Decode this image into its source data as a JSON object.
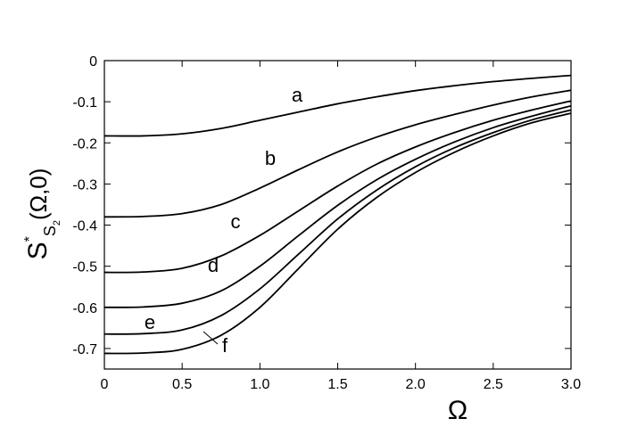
{
  "chart_data": {
    "type": "line",
    "x_label": "Ω",
    "y_label": {
      "main": "S",
      "sup": "*",
      "sub": "S",
      "subsub": "2",
      "rest": "(Ω,0)"
    },
    "x": [
      0,
      0.25,
      0.5,
      0.75,
      1,
      1.25,
      1.5,
      1.75,
      2,
      2.25,
      2.5,
      2.75,
      3
    ],
    "series": [
      {
        "name": "a",
        "color": "#000000",
        "values": [
          -0.183,
          -0.183,
          -0.178,
          -0.165,
          -0.145,
          -0.125,
          -0.105,
          -0.088,
          -0.073,
          -0.061,
          -0.051,
          -0.043,
          -0.036
        ]
      },
      {
        "name": "b",
        "color": "#000000",
        "values": [
          -0.38,
          -0.379,
          -0.372,
          -0.35,
          -0.31,
          -0.265,
          -0.222,
          -0.186,
          -0.156,
          -0.131,
          -0.108,
          -0.088,
          -0.072
        ]
      },
      {
        "name": "c",
        "color": "#000000",
        "values": [
          -0.515,
          -0.514,
          -0.505,
          -0.475,
          -0.425,
          -0.365,
          -0.305,
          -0.252,
          -0.21,
          -0.175,
          -0.145,
          -0.12,
          -0.098
        ]
      },
      {
        "name": "d",
        "color": "#000000",
        "values": [
          -0.6,
          -0.599,
          -0.59,
          -0.56,
          -0.5,
          -0.425,
          -0.352,
          -0.29,
          -0.24,
          -0.198,
          -0.163,
          -0.135,
          -0.11
        ]
      },
      {
        "name": "e",
        "color": "#000000",
        "values": [
          -0.665,
          -0.664,
          -0.655,
          -0.62,
          -0.555,
          -0.47,
          -0.385,
          -0.315,
          -0.258,
          -0.212,
          -0.175,
          -0.144,
          -0.12
        ]
      },
      {
        "name": "f",
        "color": "#000000",
        "values": [
          -0.712,
          -0.711,
          -0.702,
          -0.668,
          -0.6,
          -0.505,
          -0.41,
          -0.333,
          -0.272,
          -0.223,
          -0.183,
          -0.151,
          -0.128
        ]
      }
    ],
    "xlim": [
      0,
      3
    ],
    "xticks": [
      0,
      0.5,
      {
        "value": 1,
        "label": "1.0"
      },
      1.5,
      {
        "value": 2,
        "label": "2.0"
      },
      2.5,
      {
        "value": 3,
        "label": "3.0"
      }
    ],
    "ylim": [
      -0.75,
      0
    ],
    "yticks": [
      0,
      -0.1,
      -0.2,
      -0.3,
      -0.4,
      -0.5,
      -0.6,
      -0.7
    ]
  }
}
